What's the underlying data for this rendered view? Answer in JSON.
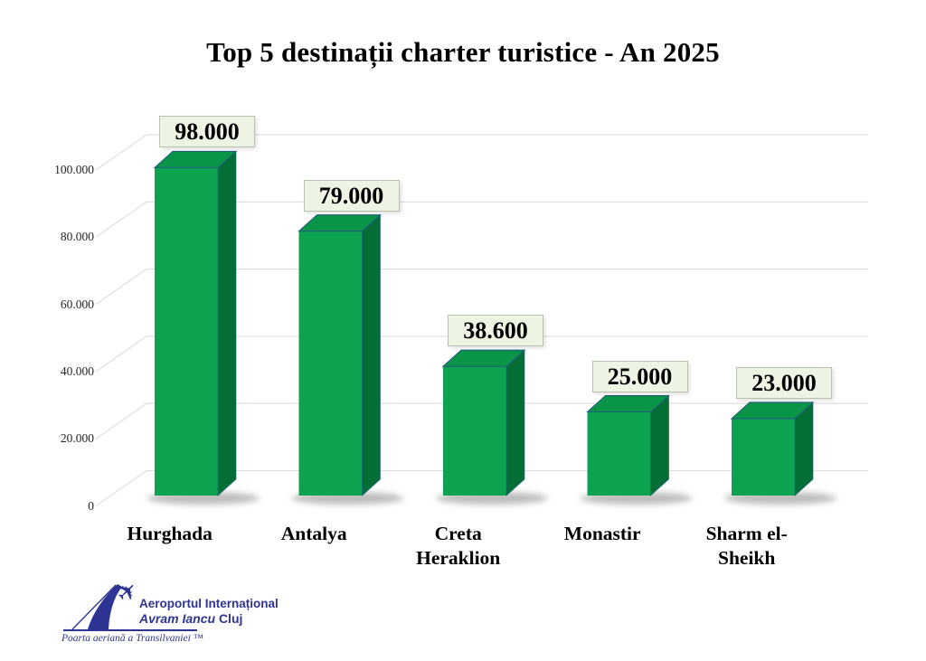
{
  "title": "Top 5 destinații charter turistice - An 2025",
  "chart_data": {
    "type": "bar",
    "style": "3d-column",
    "title": "Top 5 destinații charter turistice - An 2025",
    "categories": [
      "Hurghada",
      "Antalya",
      "Creta Heraklion",
      "Monastir",
      "Sharm el-Sheikh"
    ],
    "category_display": [
      "Hurghada",
      "Antalya",
      "Creta\nHeraklion",
      "Monastir",
      "Sharm el-\nSheikh"
    ],
    "values": [
      98000,
      79000,
      38600,
      25000,
      23000
    ],
    "value_labels": [
      "98.000",
      "79.000",
      "38.600",
      "25.000",
      "23.000"
    ],
    "xlabel": "",
    "ylabel": "",
    "ylim": [
      0,
      100000
    ],
    "grid": true,
    "legend": false,
    "y_axis": {
      "ticks": [
        {
          "value": 0,
          "label": "0"
        },
        {
          "value": 20000,
          "label": "20.000"
        },
        {
          "value": 40000,
          "label": "40.000"
        },
        {
          "value": 60000,
          "label": "60.000"
        },
        {
          "value": 80000,
          "label": "80.000"
        },
        {
          "value": 100000,
          "label": "100.000"
        }
      ]
    },
    "colors": {
      "bar_front": "#0ca24f",
      "bar_top": "#0a9447",
      "bar_side": "#046e36",
      "bar_edge": "#235f80",
      "grid": "#dcdcdc",
      "label_box_bg": "#eef4e4",
      "label_box_border": "#b7c2ad"
    }
  },
  "logo": {
    "name_line1": "Aeroportul Internațional",
    "name_line2_italic": "Avram Iancu",
    "name_line2_regular": "Cluj",
    "tagline": "Poarta aeriană a Transilvaniei ™",
    "color": "#2d3494"
  }
}
